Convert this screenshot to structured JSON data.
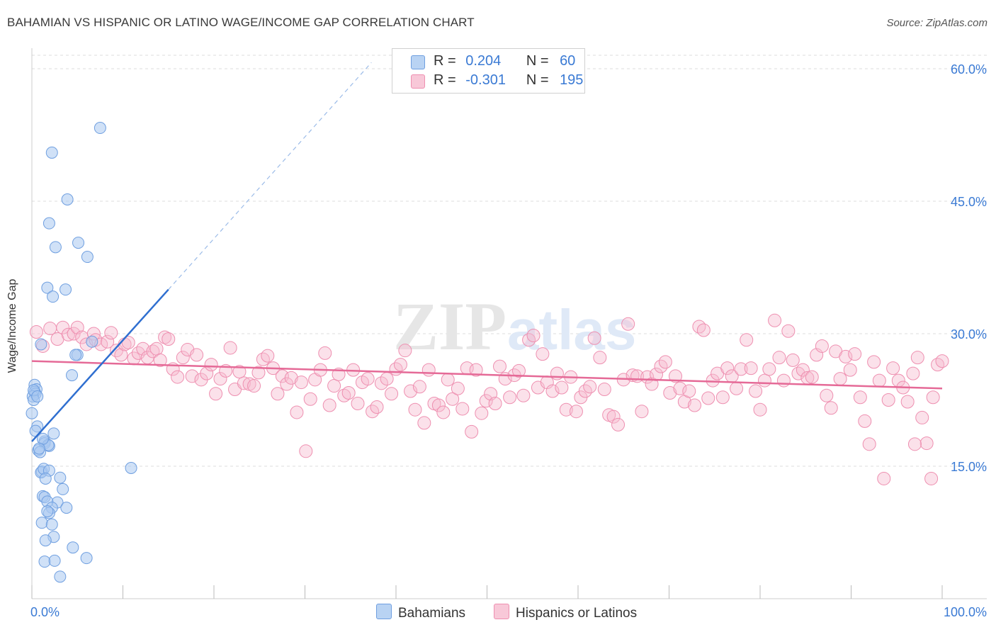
{
  "title": "BAHAMIAN VS HISPANIC OR LATINO WAGE/INCOME GAP CORRELATION CHART",
  "source": "Source: ZipAtlas.com",
  "watermark": {
    "zip": "ZIP",
    "atlas": "atlas"
  },
  "colors": {
    "blue_fill": "#a9c9f0",
    "blue_stroke": "#6f9fe0",
    "blue_line": "#2f6fd0",
    "pink_fill": "#f6bdd0",
    "pink_stroke": "#ee8fb0",
    "pink_line": "#e56a97",
    "tick_label": "#3a7ad4",
    "grid": "#dddddd"
  },
  "legend": {
    "rows": [
      {
        "r_label": "R =",
        "r_value": "0.204",
        "n_label": "N =",
        "n_value": "60",
        "series": "blue"
      },
      {
        "r_label": "R =",
        "r_value": "-0.301",
        "n_label": "N =",
        "n_value": "195",
        "series": "pink"
      }
    ]
  },
  "bottom_legend": [
    {
      "label": "Bahamians",
      "series": "blue"
    },
    {
      "label": "Hispanics or Latinos",
      "series": "pink"
    }
  ],
  "chart_data": {
    "type": "scatter",
    "title": "BAHAMIAN VS HISPANIC OR LATINO WAGE/INCOME GAP CORRELATION CHART",
    "xlabel": "",
    "ylabel": "Wage/Income Gap",
    "xlim": [
      0,
      105
    ],
    "ylim": [
      0,
      62
    ],
    "x_tick_labels": [
      {
        "value": 0,
        "label": "0.0%"
      },
      {
        "value": 100,
        "label": "100.0%"
      }
    ],
    "x_minor_ticks": [
      0,
      10,
      20,
      30,
      40,
      50,
      60,
      70,
      80,
      90,
      100
    ],
    "y_ticks": [
      {
        "value": 15,
        "label": "15.0%"
      },
      {
        "value": 30,
        "label": "30.0%"
      },
      {
        "value": 45,
        "label": "45.0%"
      },
      {
        "value": 60,
        "label": "60.0%"
      }
    ],
    "grid": true,
    "series": [
      {
        "name": "Bahamians",
        "color_key": "blue",
        "trend": {
          "x0": 0,
          "y0": 17.8,
          "x1": 15,
          "y1": 35.0,
          "dash_to_x": 37.3,
          "dash_to_y": 60.7
        },
        "points": [
          [
            7.5,
            53.3
          ],
          [
            2.2,
            50.5
          ],
          [
            3.9,
            45.2
          ],
          [
            1.9,
            42.5
          ],
          [
            2.6,
            39.8
          ],
          [
            5.1,
            40.3
          ],
          [
            6.1,
            38.7
          ],
          [
            1.7,
            35.2
          ],
          [
            3.7,
            35.0
          ],
          [
            2.3,
            34.2
          ],
          [
            1.0,
            28.8
          ],
          [
            5.0,
            27.6
          ],
          [
            4.8,
            27.6
          ],
          [
            6.6,
            29.1
          ],
          [
            4.4,
            25.3
          ],
          [
            0.3,
            24.2
          ],
          [
            0.5,
            23.7
          ],
          [
            0.3,
            23.4
          ],
          [
            0.4,
            23.2
          ],
          [
            0.1,
            22.9
          ],
          [
            0.2,
            22.5
          ],
          [
            0.0,
            21.0
          ],
          [
            0.6,
            19.5
          ],
          [
            0.4,
            19.0
          ],
          [
            2.4,
            18.7
          ],
          [
            1.4,
            17.8
          ],
          [
            1.4,
            17.6
          ],
          [
            1.9,
            17.3
          ],
          [
            1.8,
            17.4
          ],
          [
            0.7,
            16.8
          ],
          [
            0.9,
            16.6
          ],
          [
            1.1,
            14.4
          ],
          [
            1.0,
            14.3
          ],
          [
            1.3,
            14.7
          ],
          [
            1.9,
            14.5
          ],
          [
            1.5,
            13.6
          ],
          [
            3.1,
            13.7
          ],
          [
            10.9,
            14.8
          ],
          [
            3.4,
            12.4
          ],
          [
            1.2,
            11.6
          ],
          [
            1.4,
            11.5
          ],
          [
            2.8,
            10.9
          ],
          [
            1.7,
            11.0
          ],
          [
            2.2,
            10.3
          ],
          [
            3.8,
            10.3
          ],
          [
            1.9,
            9.7
          ],
          [
            1.7,
            9.9
          ],
          [
            1.1,
            8.6
          ],
          [
            2.2,
            8.4
          ],
          [
            2.4,
            7.0
          ],
          [
            1.5,
            6.6
          ],
          [
            4.5,
            5.8
          ],
          [
            6.0,
            4.6
          ],
          [
            1.4,
            4.2
          ],
          [
            2.5,
            4.3
          ],
          [
            3.1,
            2.5
          ],
          [
            0.2,
            23.6
          ],
          [
            0.6,
            22.9
          ],
          [
            1.2,
            18.1
          ],
          [
            0.8,
            17.0
          ]
        ]
      },
      {
        "name": "Hispanics or Latinos",
        "color_key": "pink",
        "trend": {
          "x0": 0,
          "y0": 26.9,
          "x1": 100,
          "y1": 23.8
        },
        "points": [
          [
            0.5,
            30.2
          ],
          [
            1.2,
            28.6
          ],
          [
            2.0,
            30.6
          ],
          [
            2.8,
            29.4
          ],
          [
            3.4,
            30.7
          ],
          [
            4.0,
            29.9
          ],
          [
            4.6,
            30.0
          ],
          [
            5.0,
            30.7
          ],
          [
            5.5,
            29.6
          ],
          [
            6.0,
            28.8
          ],
          [
            6.8,
            30.0
          ],
          [
            7.0,
            29.3
          ],
          [
            7.6,
            28.8
          ],
          [
            8.3,
            29.1
          ],
          [
            8.7,
            30.1
          ],
          [
            9.3,
            28.1
          ],
          [
            9.8,
            27.6
          ],
          [
            10.2,
            28.8
          ],
          [
            10.6,
            29.0
          ],
          [
            11.2,
            27.2
          ],
          [
            11.7,
            27.8
          ],
          [
            12.2,
            28.3
          ],
          [
            12.7,
            27.3
          ],
          [
            13.3,
            28.0
          ],
          [
            13.7,
            28.3
          ],
          [
            14.1,
            27.0
          ],
          [
            14.6,
            29.6
          ],
          [
            15.0,
            29.4
          ],
          [
            15.5,
            26.0
          ],
          [
            16.0,
            25.1
          ],
          [
            16.6,
            27.3
          ],
          [
            17.1,
            28.2
          ],
          [
            17.6,
            25.2
          ],
          [
            18.1,
            27.6
          ],
          [
            18.6,
            24.8
          ],
          [
            19.2,
            25.5
          ],
          [
            19.7,
            26.5
          ],
          [
            20.2,
            23.2
          ],
          [
            20.7,
            24.9
          ],
          [
            21.3,
            25.8
          ],
          [
            21.8,
            28.4
          ],
          [
            22.3,
            23.7
          ],
          [
            22.8,
            25.7
          ],
          [
            23.3,
            24.4
          ],
          [
            23.9,
            24.3
          ],
          [
            24.4,
            24.1
          ],
          [
            24.9,
            25.6
          ],
          [
            25.4,
            27.1
          ],
          [
            25.9,
            27.5
          ],
          [
            26.5,
            26.1
          ],
          [
            27.0,
            23.2
          ],
          [
            27.5,
            25.2
          ],
          [
            28.0,
            24.3
          ],
          [
            28.5,
            25.0
          ],
          [
            29.1,
            21.1
          ],
          [
            29.6,
            24.5
          ],
          [
            30.1,
            16.7
          ],
          [
            30.6,
            22.6
          ],
          [
            31.1,
            24.8
          ],
          [
            31.7,
            25.9
          ],
          [
            32.2,
            27.8
          ],
          [
            32.7,
            21.9
          ],
          [
            33.2,
            24.1
          ],
          [
            33.7,
            25.4
          ],
          [
            34.3,
            23.0
          ],
          [
            34.8,
            23.3
          ],
          [
            35.3,
            25.9
          ],
          [
            35.8,
            22.1
          ],
          [
            36.3,
            24.5
          ],
          [
            36.9,
            24.9
          ],
          [
            37.4,
            21.2
          ],
          [
            37.9,
            21.7
          ],
          [
            38.4,
            24.4
          ],
          [
            39.0,
            24.9
          ],
          [
            39.5,
            23.2
          ],
          [
            40.0,
            26.0
          ],
          [
            40.5,
            26.5
          ],
          [
            41.0,
            28.1
          ],
          [
            41.6,
            23.5
          ],
          [
            42.1,
            21.4
          ],
          [
            42.6,
            24.0
          ],
          [
            43.1,
            19.9
          ],
          [
            43.6,
            25.9
          ],
          [
            44.2,
            22.1
          ],
          [
            44.7,
            21.9
          ],
          [
            45.2,
            21.1
          ],
          [
            45.7,
            24.8
          ],
          [
            46.2,
            22.6
          ],
          [
            46.8,
            23.8
          ],
          [
            47.3,
            21.5
          ],
          [
            47.8,
            26.1
          ],
          [
            48.3,
            18.9
          ],
          [
            48.8,
            25.9
          ],
          [
            49.4,
            21.0
          ],
          [
            49.9,
            22.4
          ],
          [
            50.4,
            23.2
          ],
          [
            50.9,
            22.1
          ],
          [
            51.4,
            26.3
          ],
          [
            52.0,
            24.9
          ],
          [
            52.5,
            22.8
          ],
          [
            53.0,
            25.3
          ],
          [
            53.5,
            25.8
          ],
          [
            54.0,
            23.0
          ],
          [
            54.6,
            29.3
          ],
          [
            55.1,
            29.8
          ],
          [
            55.6,
            23.9
          ],
          [
            56.1,
            27.7
          ],
          [
            56.6,
            24.5
          ],
          [
            57.2,
            23.5
          ],
          [
            57.7,
            25.5
          ],
          [
            58.2,
            23.9
          ],
          [
            58.7,
            21.4
          ],
          [
            59.2,
            25.1
          ],
          [
            59.8,
            21.2
          ],
          [
            60.3,
            22.8
          ],
          [
            60.8,
            23.5
          ],
          [
            61.3,
            24.0
          ],
          [
            61.8,
            29.5
          ],
          [
            62.4,
            27.3
          ],
          [
            62.9,
            23.7
          ],
          [
            63.4,
            20.8
          ],
          [
            63.9,
            20.6
          ],
          [
            64.4,
            19.7
          ],
          [
            65.0,
            24.8
          ],
          [
            65.5,
            31.1
          ],
          [
            66.0,
            25.3
          ],
          [
            66.5,
            25.2
          ],
          [
            67.0,
            21.2
          ],
          [
            67.6,
            25.1
          ],
          [
            68.1,
            24.3
          ],
          [
            68.6,
            25.4
          ],
          [
            69.1,
            26.3
          ],
          [
            69.6,
            26.8
          ],
          [
            70.1,
            23.3
          ],
          [
            70.7,
            25.2
          ],
          [
            71.2,
            23.8
          ],
          [
            71.7,
            22.3
          ],
          [
            72.2,
            23.5
          ],
          [
            72.8,
            21.9
          ],
          [
            73.3,
            30.8
          ],
          [
            73.8,
            30.4
          ],
          [
            74.3,
            22.7
          ],
          [
            74.8,
            24.7
          ],
          [
            75.3,
            25.5
          ],
          [
            75.9,
            22.8
          ],
          [
            76.4,
            26.1
          ],
          [
            76.9,
            25.2
          ],
          [
            77.4,
            23.8
          ],
          [
            77.9,
            26.0
          ],
          [
            78.5,
            29.3
          ],
          [
            79.0,
            26.1
          ],
          [
            79.5,
            23.5
          ],
          [
            80.0,
            21.4
          ],
          [
            80.5,
            24.7
          ],
          [
            81.0,
            26.0
          ],
          [
            81.6,
            31.5
          ],
          [
            82.1,
            27.3
          ],
          [
            82.6,
            24.7
          ],
          [
            83.1,
            30.3
          ],
          [
            83.6,
            27.0
          ],
          [
            84.2,
            25.5
          ],
          [
            84.7,
            25.9
          ],
          [
            85.2,
            25.0
          ],
          [
            85.7,
            25.1
          ],
          [
            86.2,
            27.6
          ],
          [
            86.8,
            28.6
          ],
          [
            87.3,
            23.0
          ],
          [
            87.8,
            21.6
          ],
          [
            88.3,
            28.0
          ],
          [
            88.8,
            24.9
          ],
          [
            89.4,
            27.4
          ],
          [
            89.9,
            25.9
          ],
          [
            90.4,
            27.7
          ],
          [
            91.0,
            22.8
          ],
          [
            91.5,
            20.1
          ],
          [
            92.0,
            17.5
          ],
          [
            92.5,
            26.8
          ],
          [
            93.1,
            24.7
          ],
          [
            93.6,
            13.6
          ],
          [
            94.1,
            22.5
          ],
          [
            94.6,
            26.1
          ],
          [
            95.2,
            24.7
          ],
          [
            95.7,
            23.9
          ],
          [
            96.2,
            22.3
          ],
          [
            96.8,
            25.5
          ],
          [
            97.3,
            27.3
          ],
          [
            97.8,
            20.5
          ],
          [
            98.3,
            17.6
          ],
          [
            99.0,
            22.8
          ],
          [
            99.5,
            26.5
          ],
          [
            100.0,
            26.9
          ],
          [
            98.8,
            13.6
          ],
          [
            97.0,
            17.5
          ]
        ]
      }
    ]
  }
}
